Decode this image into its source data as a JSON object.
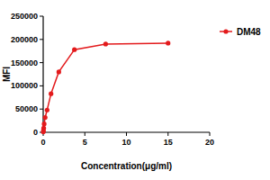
{
  "chart_data": {
    "type": "line",
    "x_label": "Concentration(μg/ml)",
    "y_label": "MFI",
    "x": [
      0.0146,
      0.0293,
      0.0586,
      0.117,
      0.234,
      0.469,
      0.938,
      1.875,
      3.75,
      7.5,
      15
    ],
    "series": [
      {
        "name": "DM48",
        "color": "#e31a1c",
        "marker": "circle",
        "line_style": "solid",
        "values": [
          1000,
          4000,
          9000,
          18000,
          32000,
          48000,
          83000,
          130000,
          178000,
          190000,
          192000
        ]
      }
    ],
    "xlim": [
      0,
      20
    ],
    "xticks": [
      0,
      5,
      10,
      15,
      20
    ],
    "ylim": [
      0,
      250000
    ],
    "yticks": [
      0,
      50000,
      100000,
      150000,
      200000,
      250000
    ],
    "grid": false,
    "legend": "top-right"
  }
}
